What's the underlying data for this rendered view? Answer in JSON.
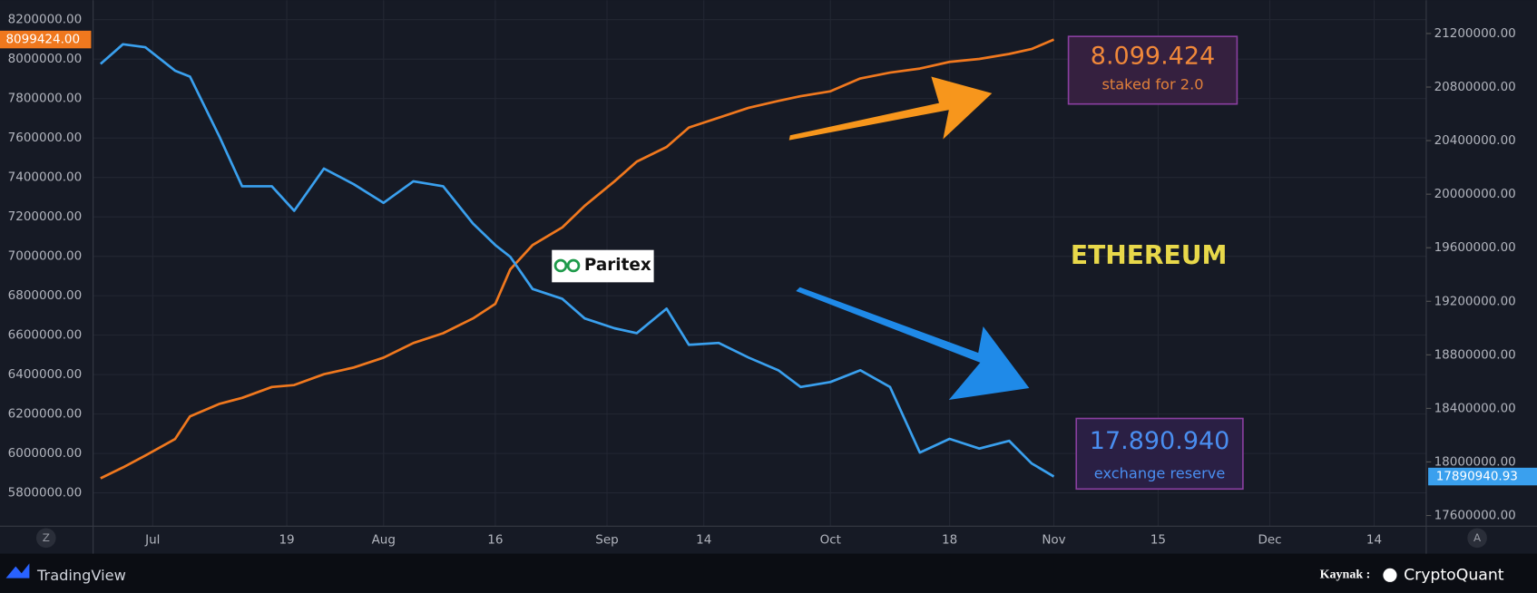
{
  "chart_data": {
    "type": "line",
    "x": [
      -7,
      -4,
      -1,
      3,
      5,
      9,
      12,
      16,
      19,
      23,
      27,
      31,
      35,
      39,
      43,
      46,
      48,
      51,
      55,
      58,
      62,
      65,
      69,
      72,
      76,
      80,
      84,
      87,
      91,
      95,
      99,
      103,
      107,
      111,
      115,
      118,
      121
    ],
    "xlim": [
      -8,
      171
    ],
    "xticks": [
      {
        "value": 0,
        "label": "Jul"
      },
      {
        "value": 18,
        "label": "19"
      },
      {
        "value": 31,
        "label": "Aug"
      },
      {
        "value": 46,
        "label": "16"
      },
      {
        "value": 61,
        "label": "Sep"
      },
      {
        "value": 74,
        "label": "14"
      },
      {
        "value": 91,
        "label": "Oct"
      },
      {
        "value": 107,
        "label": "18"
      },
      {
        "value": 121,
        "label": "Nov"
      },
      {
        "value": 135,
        "label": "15"
      },
      {
        "value": 150,
        "label": "Dec"
      },
      {
        "value": 164,
        "label": "14"
      }
    ],
    "ylim": [
      5631000,
      8299000
    ],
    "yticks": [
      {
        "value": 5800000,
        "label": "5800000.00"
      },
      {
        "value": 6000000,
        "label": "6000000.00"
      },
      {
        "value": 6200000,
        "label": "6200000.00"
      },
      {
        "value": 6400000,
        "label": "6400000.00"
      },
      {
        "value": 6600000,
        "label": "6600000.00"
      },
      {
        "value": 6800000,
        "label": "6800000.00"
      },
      {
        "value": 7000000,
        "label": "7000000.00"
      },
      {
        "value": 7200000,
        "label": "7200000.00"
      },
      {
        "value": 7400000,
        "label": "7400000.00"
      },
      {
        "value": 7600000,
        "label": "7600000.00"
      },
      {
        "value": 7800000,
        "label": "7800000.00"
      },
      {
        "value": 8000000,
        "label": "8000000.00"
      },
      {
        "value": 8200000,
        "label": "8200000.00"
      }
    ],
    "y2lim": [
      17520000,
      21449000
    ],
    "y2ticks": [
      {
        "value": 17600000,
        "label": "17600000.00"
      },
      {
        "value": 18000000,
        "label": "18000000.00"
      },
      {
        "value": 18400000,
        "label": "18400000.00"
      },
      {
        "value": 18800000,
        "label": "18800000.00"
      },
      {
        "value": 19200000,
        "label": "19200000.00"
      },
      {
        "value": 19600000,
        "label": "19600000.00"
      },
      {
        "value": 20000000,
        "label": "20000000.00"
      },
      {
        "value": 20400000,
        "label": "20400000.00"
      },
      {
        "value": 20800000,
        "label": "20800000.00"
      },
      {
        "value": 21200000,
        "label": "21200000.00"
      }
    ],
    "grid": true,
    "series": [
      {
        "name": "staked for 2.0",
        "color": "#f0781e",
        "axis": "y",
        "last_value_label": "8099424.00",
        "values": [
          5874000,
          5929000,
          5989000,
          6073000,
          6188000,
          6252000,
          6282000,
          6337000,
          6347000,
          6402000,
          6436000,
          6486000,
          6560000,
          6610000,
          6685000,
          6759000,
          6933000,
          7057000,
          7147000,
          7256000,
          7380000,
          7480000,
          7554000,
          7653000,
          7703000,
          7753000,
          7788000,
          7812000,
          7837000,
          7902000,
          7932000,
          7952000,
          7986000,
          8001000,
          8026000,
          8051000,
          8099424
        ]
      },
      {
        "name": "exchange reserve",
        "color": "#3aa0ee",
        "axis": "y2",
        "last_value_label": "17890940.93",
        "values": [
          20973000,
          21120000,
          21098000,
          20922000,
          20878000,
          20425000,
          20059000,
          20059000,
          19876000,
          20191000,
          20074000,
          19935000,
          20096000,
          20059000,
          19781000,
          19620000,
          19533000,
          19292000,
          19218000,
          19072000,
          18999000,
          18962000,
          19145000,
          18875000,
          18889000,
          18780000,
          18685000,
          18560000,
          18597000,
          18685000,
          18560000,
          18070000,
          18173000,
          18100000,
          18158000,
          17990000,
          17890940.93
        ]
      }
    ],
    "annotations": {
      "staked_total": "8.099.424",
      "reserve_total": "17.890.940",
      "asset": "ETHEREUM",
      "logo": "Paritex"
    },
    "footer": {
      "platform": "TradingView",
      "source_label": "Kaynak :",
      "source": "CryptoQuant",
      "left_button": "Z",
      "right_button": "A"
    }
  }
}
